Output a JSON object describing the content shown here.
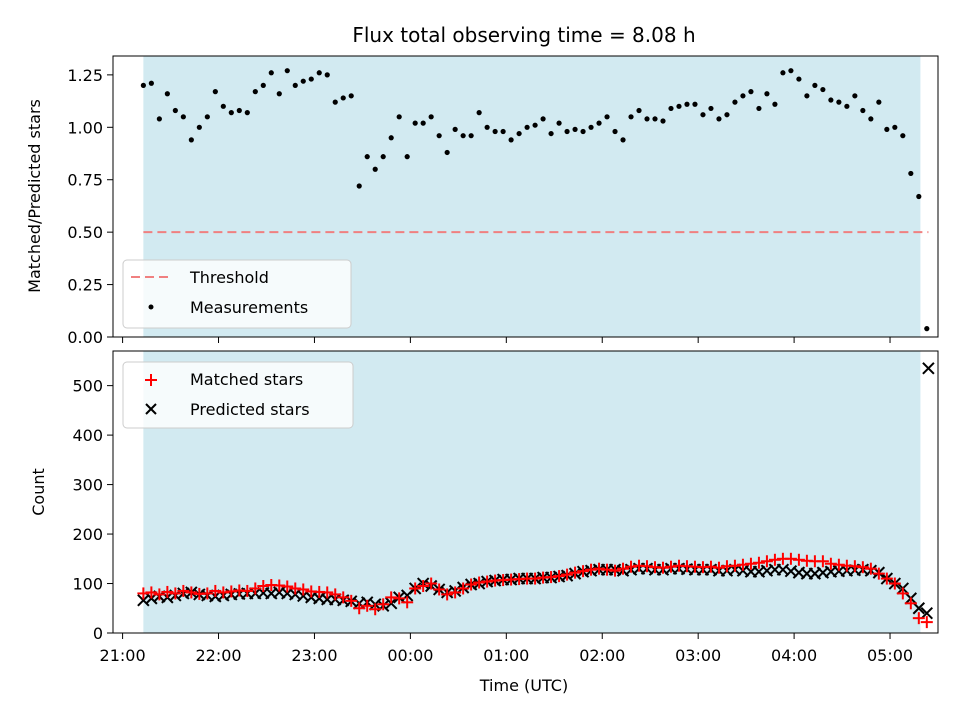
{
  "colors": {
    "span_fill": "#add8e6",
    "threshold": "#f08080",
    "matched": "#ff0000",
    "predicted": "#000000",
    "points": "#000000"
  },
  "chart_data": [
    {
      "type": "scatter",
      "title": "Flux total observing time = 8.08 h",
      "xlabel": "",
      "ylabel": "Matched/Predicted stars",
      "xlim": [
        "21:00 (-6 min)",
        "05:30"
      ],
      "ylim": [
        0,
        1.34
      ],
      "yticks": [
        "0.00",
        "0.25",
        "0.50",
        "0.75",
        "1.00",
        "1.25"
      ],
      "observing_span": [
        "21:13",
        "05:19"
      ],
      "legend": {
        "position": "lower-left",
        "entries": [
          "Threshold",
          "Measurements"
        ]
      },
      "threshold": {
        "name": "Threshold",
        "y": 0.5,
        "x_from": "21:13",
        "x_to": "05:24"
      },
      "series": [
        {
          "name": "Measurements",
          "x": [
            "21:13",
            "21:18",
            "21:23",
            "21:28",
            "21:33",
            "21:38",
            "21:43",
            "21:48",
            "21:53",
            "21:58",
            "22:03",
            "22:08",
            "22:13",
            "22:18",
            "22:23",
            "22:28",
            "22:33",
            "22:38",
            "22:43",
            "22:48",
            "22:53",
            "22:58",
            "23:03",
            "23:08",
            "23:13",
            "23:18",
            "23:23",
            "23:28",
            "23:33",
            "23:38",
            "23:43",
            "23:48",
            "23:53",
            "23:58",
            "00:03",
            "00:08",
            "00:13",
            "00:18",
            "00:23",
            "00:28",
            "00:33",
            "00:38",
            "00:43",
            "00:48",
            "00:53",
            "00:58",
            "01:03",
            "01:08",
            "01:13",
            "01:18",
            "01:23",
            "01:28",
            "01:33",
            "01:38",
            "01:43",
            "01:48",
            "01:53",
            "01:58",
            "02:03",
            "02:08",
            "02:13",
            "02:18",
            "02:23",
            "02:28",
            "02:33",
            "02:38",
            "02:43",
            "02:48",
            "02:53",
            "02:58",
            "03:03",
            "03:08",
            "03:13",
            "03:18",
            "03:23",
            "03:28",
            "03:33",
            "03:38",
            "03:43",
            "03:48",
            "03:53",
            "03:58",
            "04:03",
            "04:08",
            "04:13",
            "04:18",
            "04:23",
            "04:28",
            "04:33",
            "04:38",
            "04:43",
            "04:48",
            "04:53",
            "04:58",
            "05:03",
            "05:08",
            "05:13",
            "05:18",
            "05:23"
          ],
          "y": [
            1.2,
            1.21,
            1.04,
            1.16,
            1.08,
            1.05,
            0.94,
            1.0,
            1.05,
            1.17,
            1.1,
            1.07,
            1.08,
            1.07,
            1.17,
            1.2,
            1.26,
            1.16,
            1.27,
            1.2,
            1.22,
            1.23,
            1.26,
            1.25,
            1.12,
            1.14,
            1.15,
            0.72,
            0.86,
            0.8,
            0.86,
            0.95,
            1.05,
            0.86,
            1.02,
            1.02,
            1.05,
            0.96,
            0.88,
            0.99,
            0.96,
            0.96,
            1.07,
            1.0,
            0.98,
            0.98,
            0.94,
            0.97,
            1.0,
            1.01,
            1.04,
            0.97,
            1.02,
            0.98,
            0.99,
            0.98,
            1.0,
            1.02,
            1.05,
            0.98,
            0.94,
            1.05,
            1.08,
            1.04,
            1.04,
            1.03,
            1.09,
            1.1,
            1.11,
            1.11,
            1.06,
            1.09,
            1.04,
            1.06,
            1.12,
            1.15,
            1.17,
            1.09,
            1.16,
            1.11,
            1.26,
            1.27,
            1.23,
            1.15,
            1.2,
            1.18,
            1.13,
            1.12,
            1.1,
            1.15,
            1.08,
            1.04,
            1.12,
            0.99,
            1.0,
            0.96,
            0.78,
            0.67,
            0.04
          ]
        }
      ]
    },
    {
      "type": "scatter",
      "title": "",
      "xlabel": "Time (UTC)",
      "ylabel": "Count",
      "xlim": [
        "21:00 (-6 min)",
        "05:30"
      ],
      "ylim": [
        0,
        570
      ],
      "xticks": [
        "21:00",
        "22:00",
        "23:00",
        "00:00",
        "01:00",
        "02:00",
        "03:00",
        "04:00",
        "05:00"
      ],
      "yticks": [
        "0",
        "100",
        "200",
        "300",
        "400",
        "500"
      ],
      "observing_span": [
        "21:13",
        "05:19"
      ],
      "legend": {
        "position": "upper-left",
        "entries": [
          "Matched stars",
          "Predicted stars"
        ]
      },
      "series": [
        {
          "name": "Matched stars",
          "marker": "+",
          "x": [
            "21:13",
            "21:18",
            "21:23",
            "21:28",
            "21:33",
            "21:38",
            "21:43",
            "21:48",
            "21:53",
            "21:58",
            "22:03",
            "22:08",
            "22:13",
            "22:18",
            "22:23",
            "22:28",
            "22:33",
            "22:38",
            "22:43",
            "22:48",
            "22:53",
            "22:58",
            "23:03",
            "23:08",
            "23:13",
            "23:18",
            "23:23",
            "23:28",
            "23:33",
            "23:38",
            "23:43",
            "23:48",
            "23:53",
            "23:58",
            "00:03",
            "00:08",
            "00:13",
            "00:18",
            "00:23",
            "00:28",
            "00:33",
            "00:38",
            "00:43",
            "00:48",
            "00:53",
            "00:58",
            "01:03",
            "01:08",
            "01:13",
            "01:18",
            "01:23",
            "01:28",
            "01:33",
            "01:38",
            "01:43",
            "01:48",
            "01:53",
            "01:58",
            "02:03",
            "02:08",
            "02:13",
            "02:18",
            "02:23",
            "02:28",
            "02:33",
            "02:38",
            "02:43",
            "02:48",
            "02:53",
            "02:58",
            "03:03",
            "03:08",
            "03:13",
            "03:18",
            "03:23",
            "03:28",
            "03:33",
            "03:38",
            "03:43",
            "03:48",
            "03:53",
            "03:58",
            "04:03",
            "04:08",
            "04:13",
            "04:18",
            "04:23",
            "04:28",
            "04:33",
            "04:38",
            "04:43",
            "04:48",
            "04:53",
            "04:58",
            "05:03",
            "05:08",
            "05:13",
            "05:18",
            "05:23"
          ],
          "y": [
            80,
            82,
            78,
            83,
            80,
            85,
            82,
            79,
            80,
            85,
            82,
            84,
            86,
            85,
            90,
            95,
            97,
            96,
            94,
            90,
            88,
            84,
            83,
            82,
            78,
            72,
            65,
            50,
            55,
            48,
            58,
            72,
            70,
            62,
            90,
            95,
            100,
            88,
            78,
            82,
            90,
            98,
            102,
            104,
            106,
            107,
            108,
            109,
            110,
            110,
            112,
            113,
            115,
            118,
            122,
            125,
            128,
            130,
            128,
            126,
            130,
            134,
            136,
            135,
            133,
            132,
            134,
            136,
            135,
            134,
            133,
            134,
            132,
            135,
            136,
            138,
            140,
            142,
            145,
            148,
            150,
            150,
            148,
            146,
            145,
            145,
            140,
            138,
            136,
            135,
            133,
            130,
            120,
            110,
            100,
            80,
            60,
            30,
            22
          ]
        },
        {
          "name": "Predicted stars",
          "marker": "x",
          "x": [
            "21:13",
            "21:18",
            "21:23",
            "21:28",
            "21:33",
            "21:38",
            "21:43",
            "21:48",
            "21:53",
            "21:58",
            "22:03",
            "22:08",
            "22:13",
            "22:18",
            "22:23",
            "22:28",
            "22:33",
            "22:38",
            "22:43",
            "22:48",
            "22:53",
            "22:58",
            "23:03",
            "23:08",
            "23:13",
            "23:18",
            "23:23",
            "23:28",
            "23:33",
            "23:38",
            "23:43",
            "23:48",
            "23:53",
            "23:58",
            "00:03",
            "00:08",
            "00:13",
            "00:18",
            "00:23",
            "00:28",
            "00:33",
            "00:38",
            "00:43",
            "00:48",
            "00:53",
            "00:58",
            "01:03",
            "01:08",
            "01:13",
            "01:18",
            "01:23",
            "01:28",
            "01:33",
            "01:38",
            "01:43",
            "01:48",
            "01:53",
            "01:58",
            "02:03",
            "02:08",
            "02:13",
            "02:18",
            "02:23",
            "02:28",
            "02:33",
            "02:38",
            "02:43",
            "02:48",
            "02:53",
            "02:58",
            "03:03",
            "03:08",
            "03:13",
            "03:18",
            "03:23",
            "03:28",
            "03:33",
            "03:38",
            "03:43",
            "03:48",
            "03:53",
            "03:58",
            "04:03",
            "04:08",
            "04:13",
            "04:18",
            "04:23",
            "04:28",
            "04:33",
            "04:38",
            "04:43",
            "04:48",
            "04:53",
            "04:58",
            "05:03",
            "05:08",
            "05:13",
            "05:18",
            "05:23",
            "05:24"
          ],
          "y": [
            66,
            70,
            74,
            72,
            76,
            80,
            82,
            78,
            76,
            74,
            76,
            78,
            79,
            80,
            80,
            81,
            80,
            82,
            80,
            78,
            75,
            72,
            70,
            68,
            68,
            66,
            64,
            60,
            62,
            58,
            55,
            60,
            72,
            76,
            90,
            100,
            95,
            88,
            82,
            85,
            92,
            98,
            100,
            104,
            106,
            108,
            108,
            110,
            110,
            110,
            112,
            112,
            114,
            116,
            120,
            124,
            126,
            128,
            128,
            128,
            126,
            128,
            130,
            130,
            128,
            128,
            130,
            130,
            129,
            128,
            128,
            128,
            126,
            126,
            128,
            126,
            124,
            124,
            126,
            128,
            128,
            125,
            122,
            120,
            120,
            122,
            124,
            125,
            126,
            127,
            128,
            126,
            122,
            110,
            100,
            90,
            70,
            50,
            40,
            535
          ]
        }
      ]
    }
  ]
}
